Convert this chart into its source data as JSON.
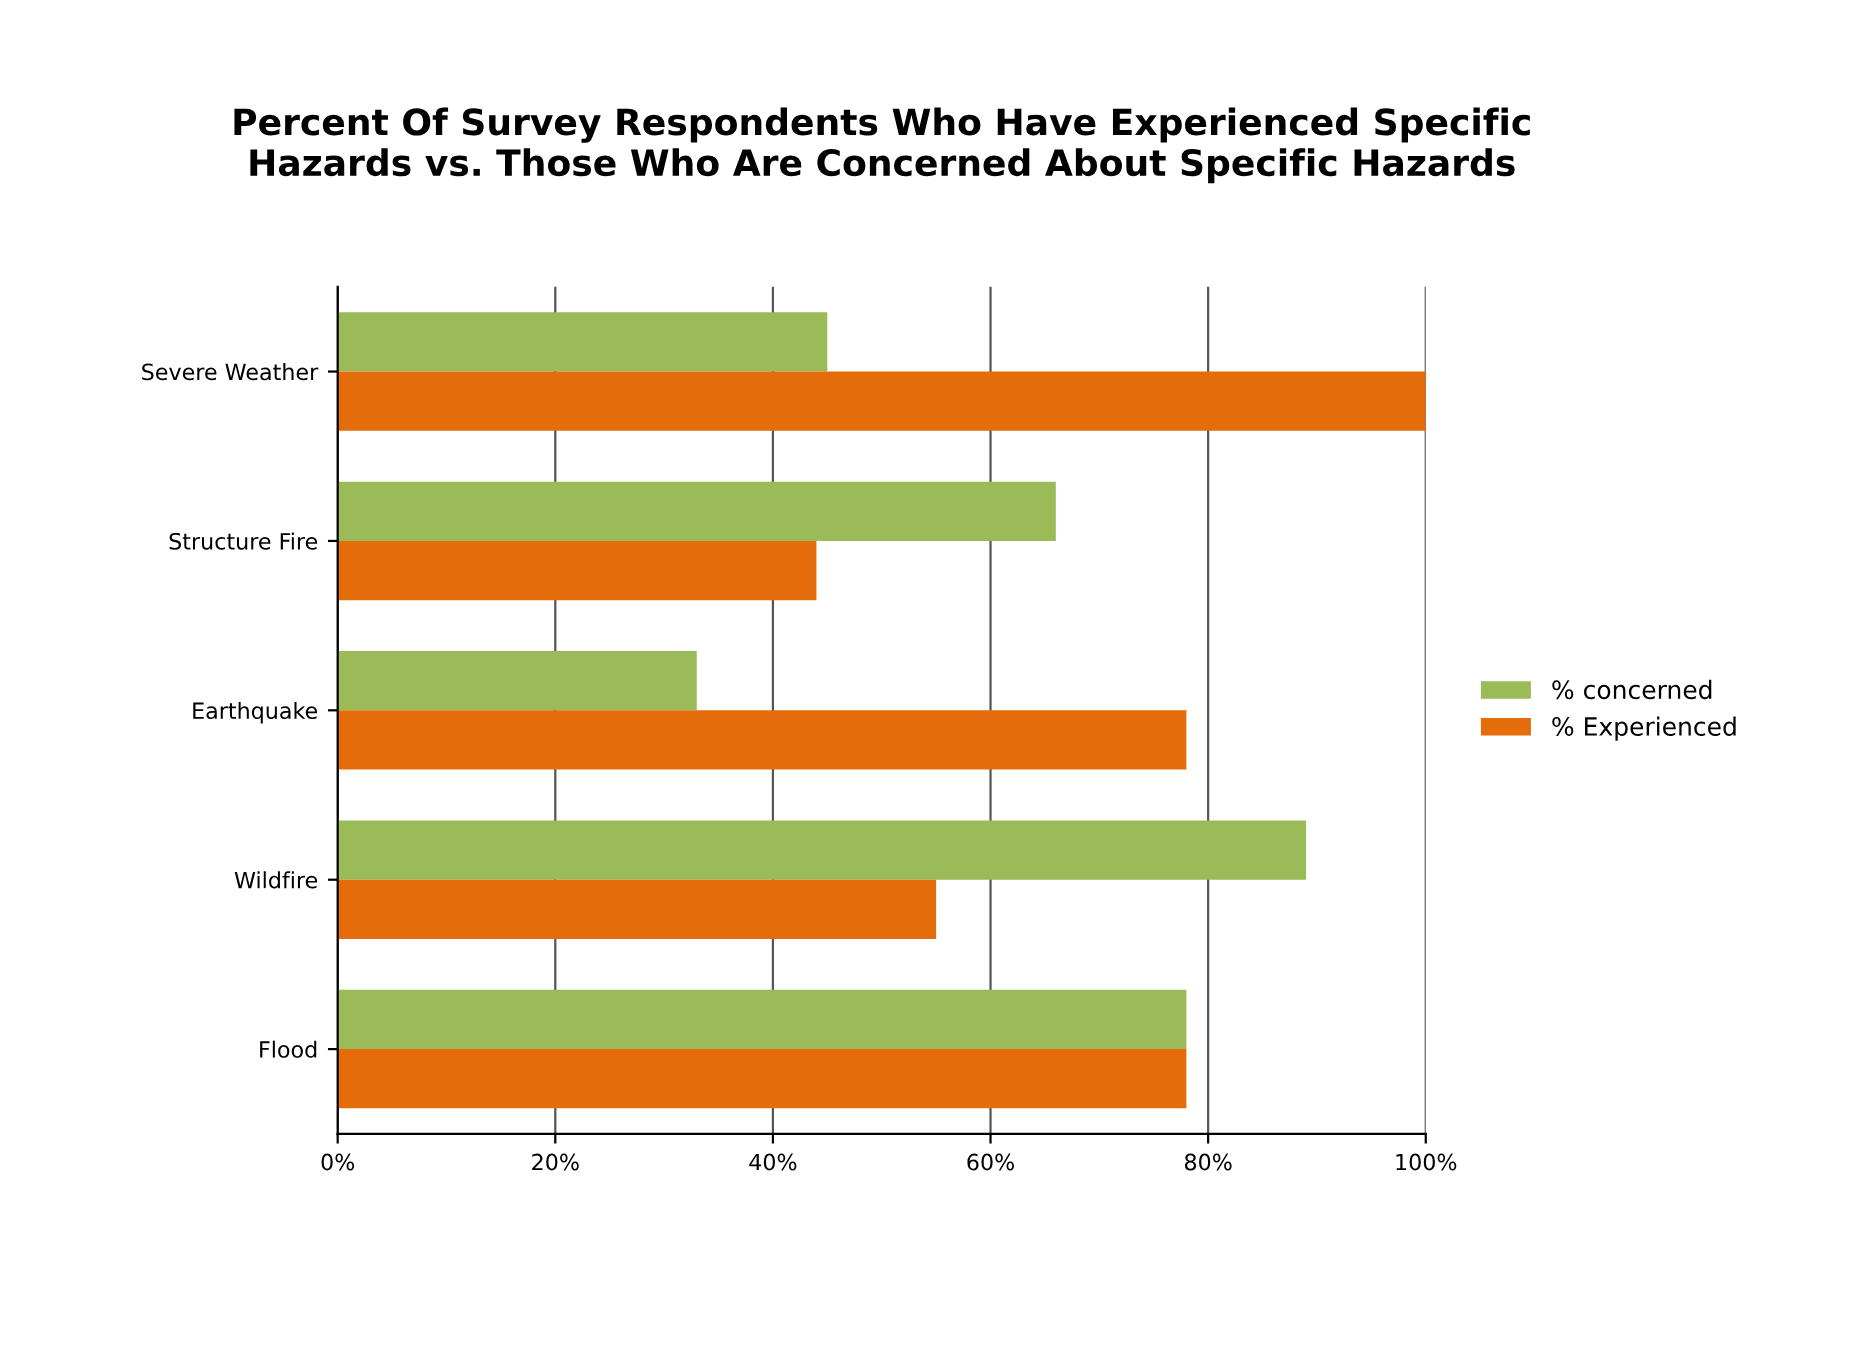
{
  "chart_data": {
    "type": "bar",
    "orientation": "horizontal",
    "title": "Percent Of Survey Respondents Who Have Experienced Specific\nHazards vs. Those Who Are Concerned About Specific Hazards",
    "categories": [
      "Severe Weather",
      "Structure Fire",
      "Earthquake",
      "Wildfire",
      "Flood"
    ],
    "series": [
      {
        "name": "% concerned",
        "color": "#9bbb59",
        "values": [
          45,
          66,
          33,
          89,
          78
        ]
      },
      {
        "name": "% Experienced",
        "color": "#e46c0a",
        "values": [
          100,
          44,
          78,
          55,
          78
        ]
      }
    ],
    "xlim": [
      0,
      100
    ],
    "xticks": [
      {
        "value": 0,
        "label": "0%"
      },
      {
        "value": 20,
        "label": "20%"
      },
      {
        "value": 40,
        "label": "40%"
      },
      {
        "value": 60,
        "label": "60%"
      },
      {
        "value": 80,
        "label": "80%"
      },
      {
        "value": 100,
        "label": "100%"
      }
    ],
    "grid": "x",
    "legend": "right"
  }
}
